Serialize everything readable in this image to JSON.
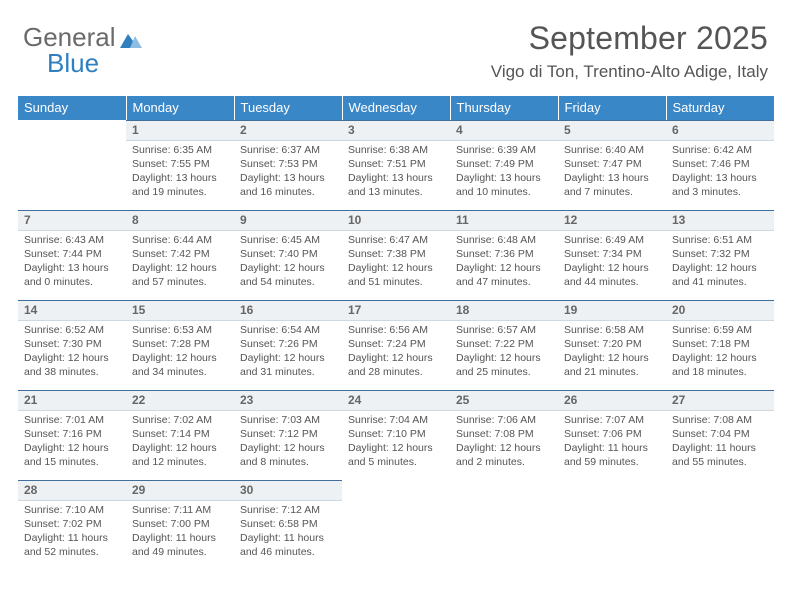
{
  "brand": {
    "line1": "General",
    "line2": "Blue"
  },
  "title": "September 2025",
  "subtitle": "Vigo di Ton, Trentino-Alto Adige, Italy",
  "colors": {
    "header_bg": "#3a87c8",
    "header_text": "#ffffff",
    "daynum_bg": "#eef1f4",
    "daynum_border_top": "#3f6f9a",
    "body_text": "#555555"
  },
  "weekdays": [
    "Sunday",
    "Monday",
    "Tuesday",
    "Wednesday",
    "Thursday",
    "Friday",
    "Saturday"
  ],
  "start_offset": 1,
  "days": [
    {
      "n": 1,
      "sunrise": "6:35 AM",
      "sunset": "7:55 PM",
      "daylight": "13 hours and 19 minutes."
    },
    {
      "n": 2,
      "sunrise": "6:37 AM",
      "sunset": "7:53 PM",
      "daylight": "13 hours and 16 minutes."
    },
    {
      "n": 3,
      "sunrise": "6:38 AM",
      "sunset": "7:51 PM",
      "daylight": "13 hours and 13 minutes."
    },
    {
      "n": 4,
      "sunrise": "6:39 AM",
      "sunset": "7:49 PM",
      "daylight": "13 hours and 10 minutes."
    },
    {
      "n": 5,
      "sunrise": "6:40 AM",
      "sunset": "7:47 PM",
      "daylight": "13 hours and 7 minutes."
    },
    {
      "n": 6,
      "sunrise": "6:42 AM",
      "sunset": "7:46 PM",
      "daylight": "13 hours and 3 minutes."
    },
    {
      "n": 7,
      "sunrise": "6:43 AM",
      "sunset": "7:44 PM",
      "daylight": "13 hours and 0 minutes."
    },
    {
      "n": 8,
      "sunrise": "6:44 AM",
      "sunset": "7:42 PM",
      "daylight": "12 hours and 57 minutes."
    },
    {
      "n": 9,
      "sunrise": "6:45 AM",
      "sunset": "7:40 PM",
      "daylight": "12 hours and 54 minutes."
    },
    {
      "n": 10,
      "sunrise": "6:47 AM",
      "sunset": "7:38 PM",
      "daylight": "12 hours and 51 minutes."
    },
    {
      "n": 11,
      "sunrise": "6:48 AM",
      "sunset": "7:36 PM",
      "daylight": "12 hours and 47 minutes."
    },
    {
      "n": 12,
      "sunrise": "6:49 AM",
      "sunset": "7:34 PM",
      "daylight": "12 hours and 44 minutes."
    },
    {
      "n": 13,
      "sunrise": "6:51 AM",
      "sunset": "7:32 PM",
      "daylight": "12 hours and 41 minutes."
    },
    {
      "n": 14,
      "sunrise": "6:52 AM",
      "sunset": "7:30 PM",
      "daylight": "12 hours and 38 minutes."
    },
    {
      "n": 15,
      "sunrise": "6:53 AM",
      "sunset": "7:28 PM",
      "daylight": "12 hours and 34 minutes."
    },
    {
      "n": 16,
      "sunrise": "6:54 AM",
      "sunset": "7:26 PM",
      "daylight": "12 hours and 31 minutes."
    },
    {
      "n": 17,
      "sunrise": "6:56 AM",
      "sunset": "7:24 PM",
      "daylight": "12 hours and 28 minutes."
    },
    {
      "n": 18,
      "sunrise": "6:57 AM",
      "sunset": "7:22 PM",
      "daylight": "12 hours and 25 minutes."
    },
    {
      "n": 19,
      "sunrise": "6:58 AM",
      "sunset": "7:20 PM",
      "daylight": "12 hours and 21 minutes."
    },
    {
      "n": 20,
      "sunrise": "6:59 AM",
      "sunset": "7:18 PM",
      "daylight": "12 hours and 18 minutes."
    },
    {
      "n": 21,
      "sunrise": "7:01 AM",
      "sunset": "7:16 PM",
      "daylight": "12 hours and 15 minutes."
    },
    {
      "n": 22,
      "sunrise": "7:02 AM",
      "sunset": "7:14 PM",
      "daylight": "12 hours and 12 minutes."
    },
    {
      "n": 23,
      "sunrise": "7:03 AM",
      "sunset": "7:12 PM",
      "daylight": "12 hours and 8 minutes."
    },
    {
      "n": 24,
      "sunrise": "7:04 AM",
      "sunset": "7:10 PM",
      "daylight": "12 hours and 5 minutes."
    },
    {
      "n": 25,
      "sunrise": "7:06 AM",
      "sunset": "7:08 PM",
      "daylight": "12 hours and 2 minutes."
    },
    {
      "n": 26,
      "sunrise": "7:07 AM",
      "sunset": "7:06 PM",
      "daylight": "11 hours and 59 minutes."
    },
    {
      "n": 27,
      "sunrise": "7:08 AM",
      "sunset": "7:04 PM",
      "daylight": "11 hours and 55 minutes."
    },
    {
      "n": 28,
      "sunrise": "7:10 AM",
      "sunset": "7:02 PM",
      "daylight": "11 hours and 52 minutes."
    },
    {
      "n": 29,
      "sunrise": "7:11 AM",
      "sunset": "7:00 PM",
      "daylight": "11 hours and 49 minutes."
    },
    {
      "n": 30,
      "sunrise": "7:12 AM",
      "sunset": "6:58 PM",
      "daylight": "11 hours and 46 minutes."
    }
  ],
  "labels": {
    "sunrise": "Sunrise:",
    "sunset": "Sunset:",
    "daylight": "Daylight:"
  }
}
